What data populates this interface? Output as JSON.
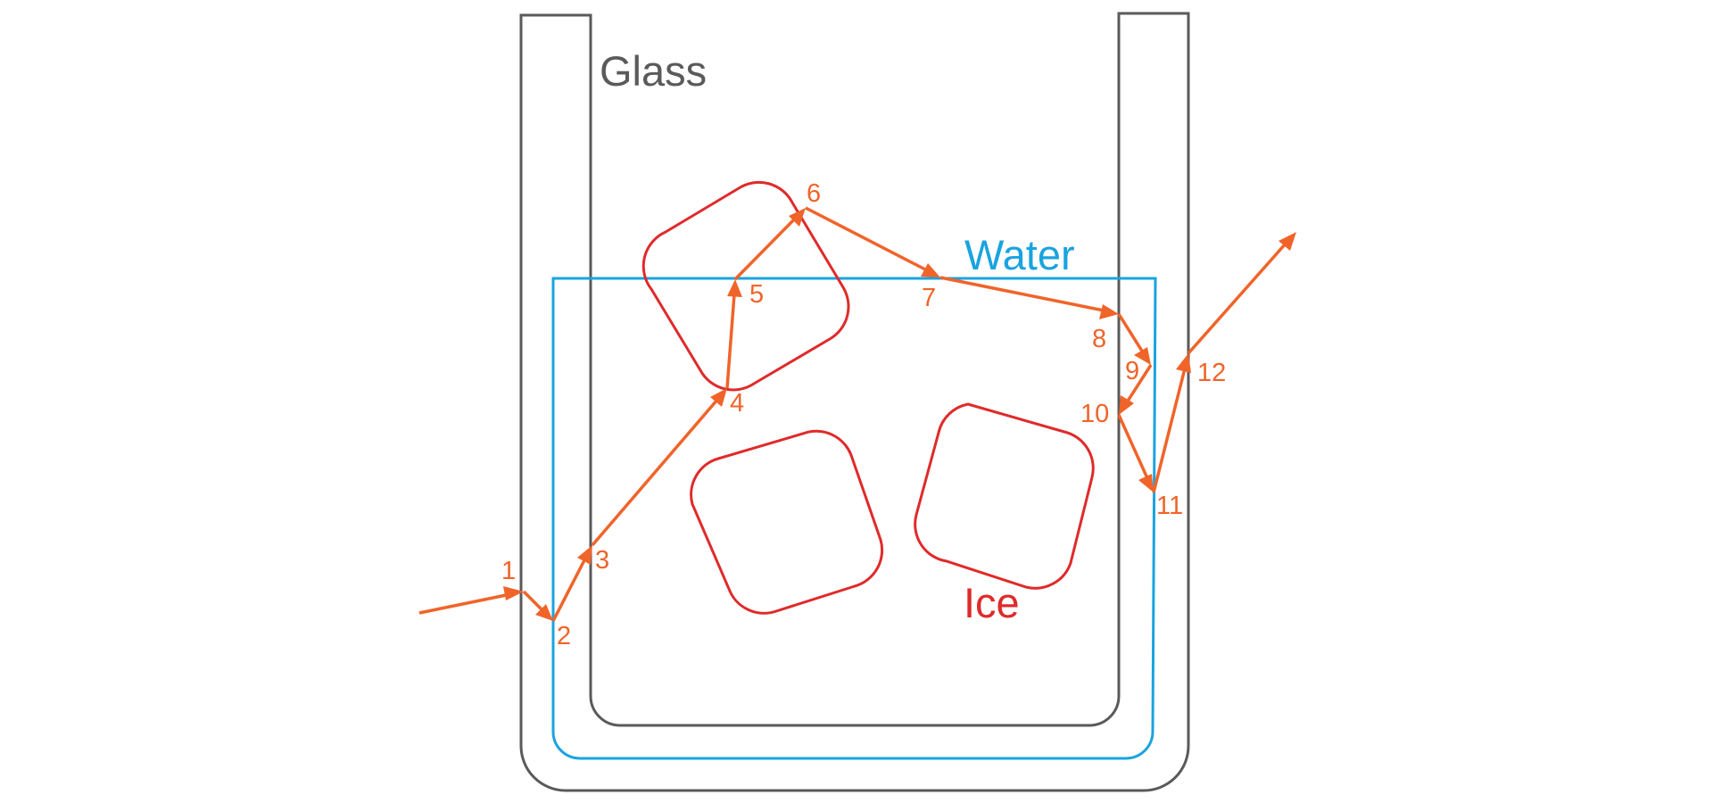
{
  "colors": {
    "glass": "#5a5a5a",
    "water": "#1aa3e0",
    "ice": "#e02a2a",
    "ray": "#f0642a"
  },
  "labels": {
    "glass": "Glass",
    "water": "Water",
    "ice": "Ice"
  },
  "ray_points": [
    {
      "label": "1"
    },
    {
      "label": "2"
    },
    {
      "label": "3"
    },
    {
      "label": "4"
    },
    {
      "label": "5"
    },
    {
      "label": "6"
    },
    {
      "label": "7"
    },
    {
      "label": "8"
    },
    {
      "label": "9"
    },
    {
      "label": "10"
    },
    {
      "label": "11"
    },
    {
      "label": "12"
    }
  ]
}
